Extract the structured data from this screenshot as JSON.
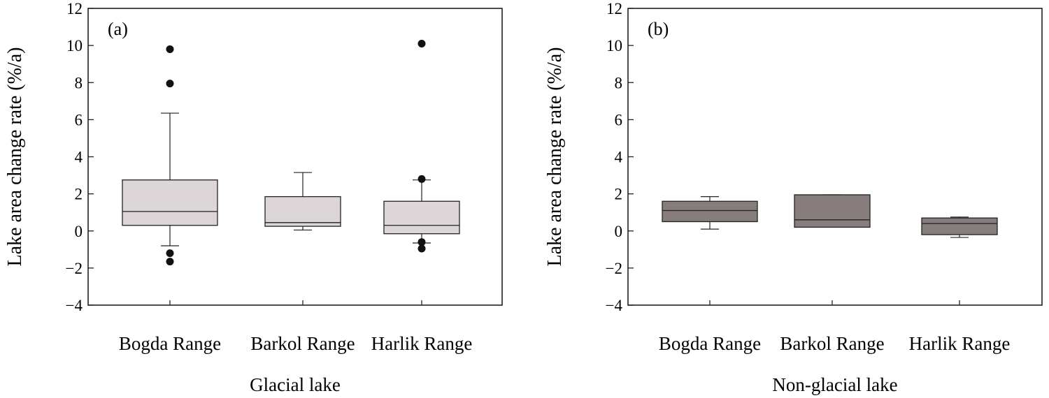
{
  "colors": {
    "glacial_box": "#dcd6d8",
    "nonglacial_box": "#867d7c",
    "stroke": "#222222",
    "outlier": "#111111"
  },
  "chart_data": [
    {
      "type": "box",
      "panel_label": "(a)",
      "xlabel": "Glacial lake",
      "ylabel": "Lake area change rate (%/a)",
      "ylim": [
        -4,
        12
      ],
      "yticks": [
        -4,
        -2,
        0,
        2,
        4,
        6,
        8,
        10,
        12
      ],
      "categories": [
        "Bogda Range",
        "Barkol Range",
        "Harlik Range"
      ],
      "boxes": [
        {
          "whisker_low": -0.8,
          "q1": 0.3,
          "median": 1.05,
          "q3": 2.75,
          "whisker_high": 6.35,
          "outliers": [
            9.8,
            7.95,
            -1.2,
            -1.65
          ]
        },
        {
          "whisker_low": 0.05,
          "q1": 0.25,
          "median": 0.45,
          "q3": 1.85,
          "whisker_high": 3.15,
          "outliers": []
        },
        {
          "whisker_low": -0.65,
          "q1": -0.15,
          "median": 0.3,
          "q3": 1.6,
          "whisker_high": 2.75,
          "outliers": [
            10.1,
            2.8,
            -0.6,
            -0.95
          ]
        }
      ]
    },
    {
      "type": "box",
      "panel_label": "(b)",
      "xlabel": "Non-glacial lake",
      "ylabel": "Lake area change rate (%/a)",
      "ylim": [
        -4,
        12
      ],
      "yticks": [
        -4,
        -2,
        0,
        2,
        4,
        6,
        8,
        10,
        12
      ],
      "categories": [
        "Bogda Range",
        "Barkol Range",
        "Harlik Range"
      ],
      "boxes": [
        {
          "whisker_low": 0.1,
          "q1": 0.5,
          "median": 1.1,
          "q3": 1.6,
          "whisker_high": 1.85,
          "outliers": []
        },
        {
          "whisker_low": 0.2,
          "q1": 0.2,
          "median": 0.6,
          "q3": 1.95,
          "whisker_high": 1.95,
          "outliers": []
        },
        {
          "whisker_low": -0.35,
          "q1": -0.2,
          "median": 0.4,
          "q3": 0.7,
          "whisker_high": 0.75,
          "outliers": []
        }
      ]
    }
  ]
}
